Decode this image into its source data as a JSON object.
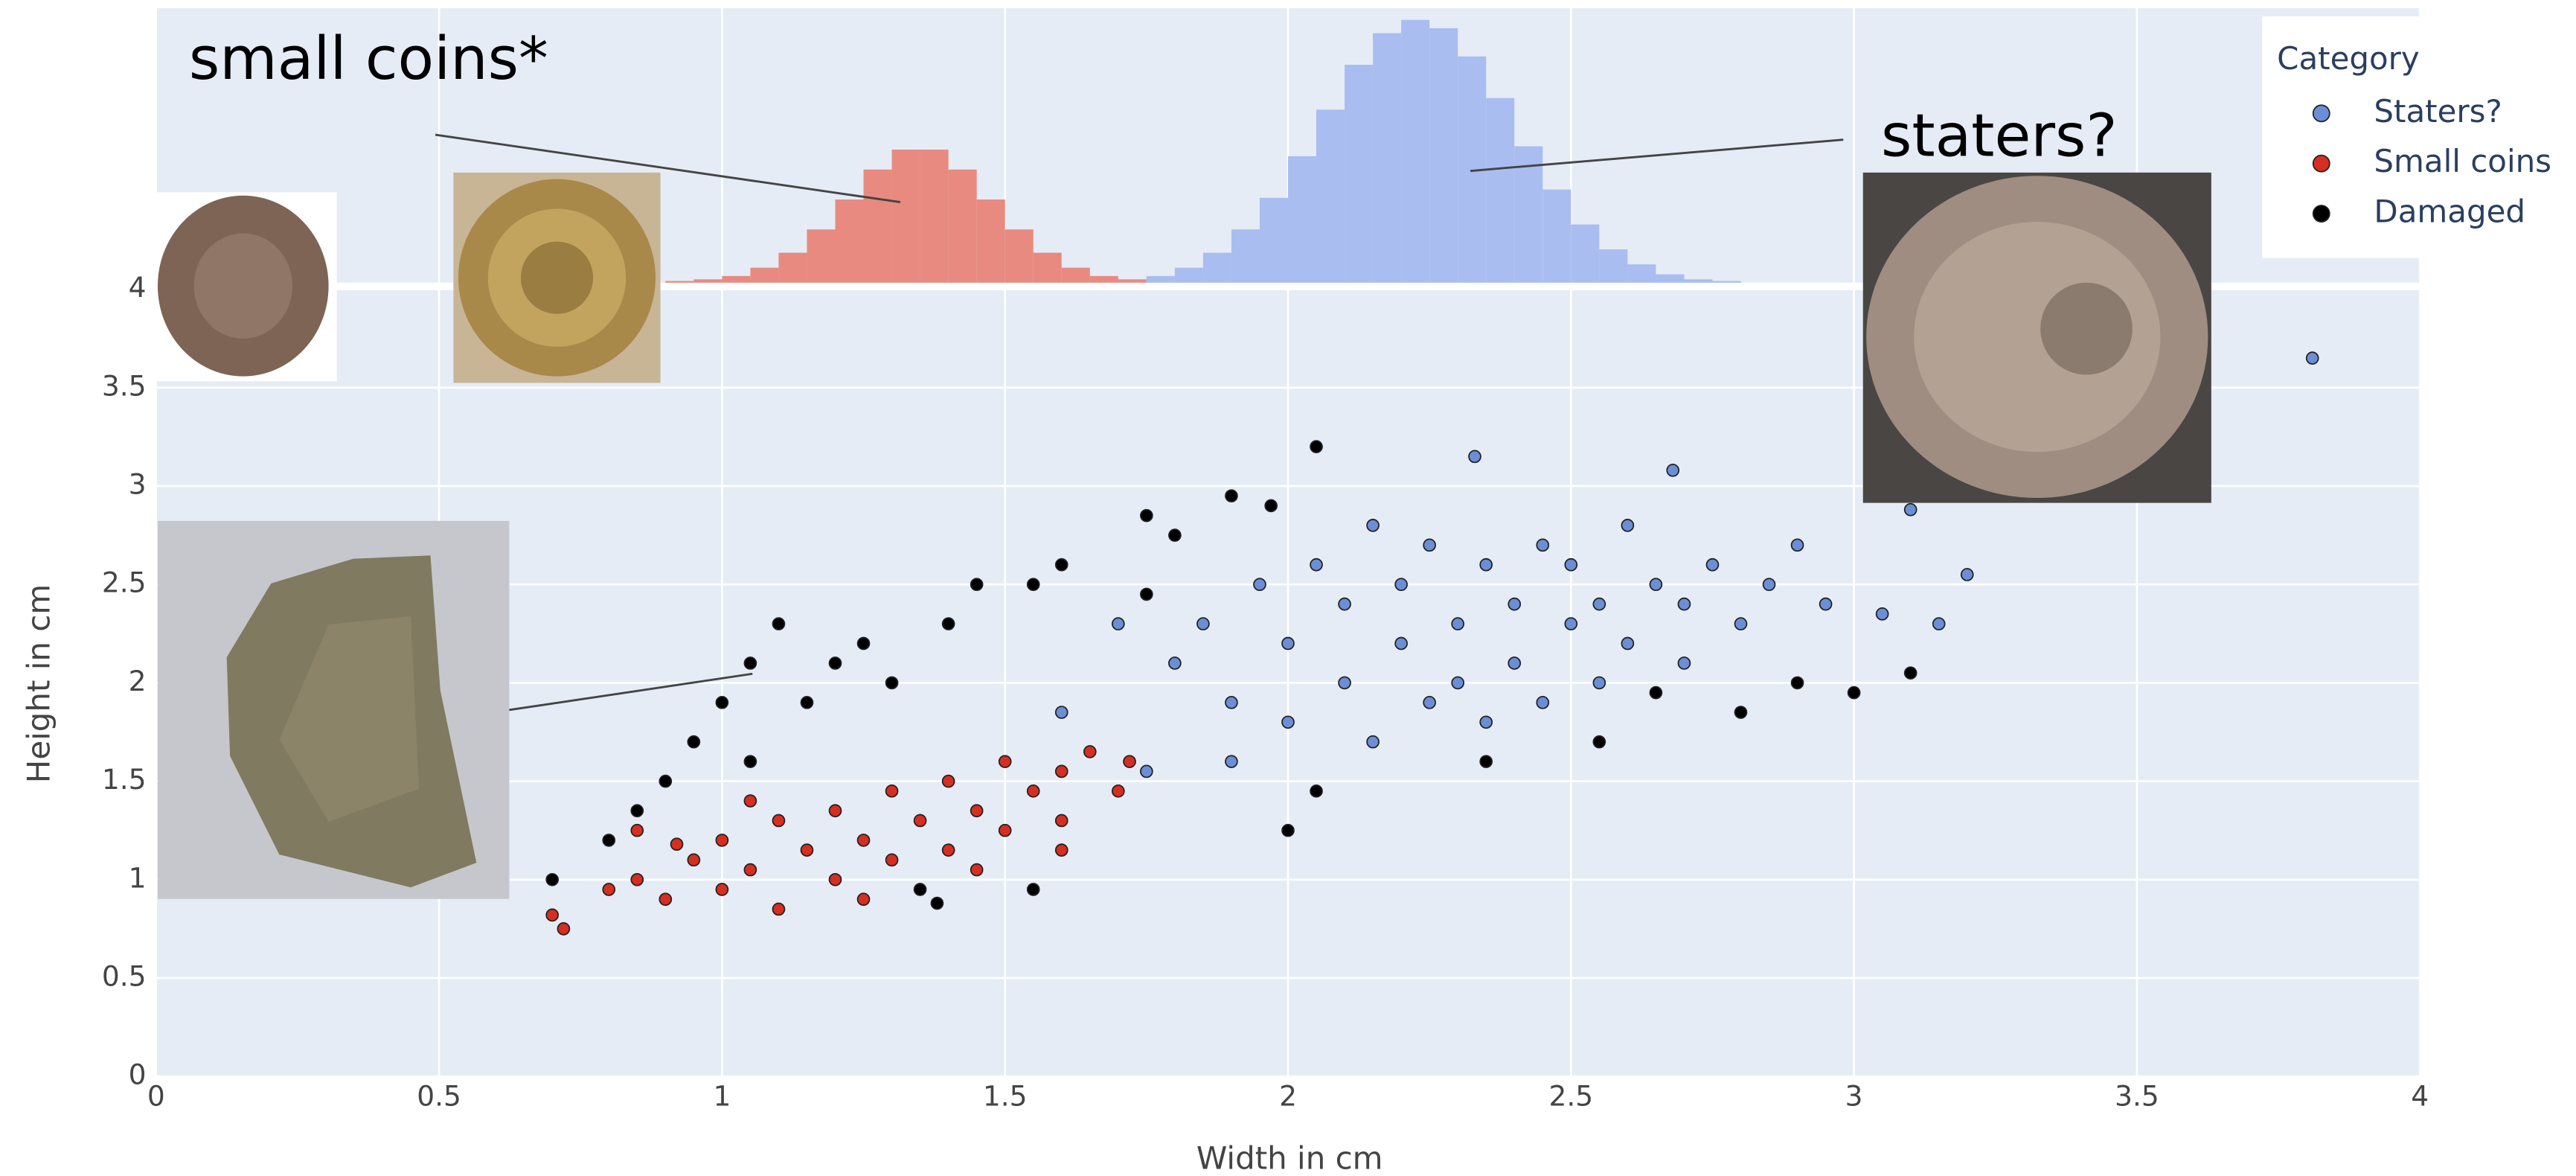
{
  "chart_data": {
    "type": "scatter",
    "x_label": "Width in cm",
    "y_label": "Height in cm",
    "xlim": [
      0,
      4
    ],
    "ylim": [
      0,
      4
    ],
    "xticks": [
      0,
      0.5,
      1,
      1.5,
      2,
      2.5,
      3,
      3.5,
      4
    ],
    "yticks": [
      0,
      0.5,
      1,
      1.5,
      2,
      2.5,
      3,
      3.5,
      4
    ],
    "grid": true,
    "legend_title": "Category",
    "legend_position": "top-right",
    "series": [
      {
        "name": "Staters?",
        "color": "#6b8fd6",
        "x": [
          1.8,
          1.85,
          1.9,
          1.95,
          2.0,
          2.0,
          2.05,
          2.1,
          2.1,
          2.15,
          2.15,
          2.2,
          2.2,
          2.25,
          2.25,
          2.3,
          2.3,
          2.35,
          2.35,
          2.4,
          2.4,
          2.45,
          2.45,
          2.5,
          2.5,
          2.55,
          2.55,
          2.6,
          2.6,
          2.65,
          2.7,
          2.7,
          2.75,
          2.8,
          2.85,
          2.9,
          2.95,
          3.05,
          3.15,
          3.2,
          2.33,
          2.68,
          1.75,
          1.9,
          1.6,
          3.81,
          3.1,
          1.7
        ],
        "y": [
          2.1,
          2.3,
          1.9,
          2.5,
          2.2,
          1.8,
          2.6,
          2.0,
          2.4,
          2.8,
          1.7,
          2.2,
          2.5,
          1.9,
          2.7,
          2.3,
          2.0,
          2.6,
          1.8,
          2.4,
          2.1,
          2.7,
          1.9,
          2.3,
          2.6,
          2.0,
          2.4,
          2.2,
          2.8,
          2.5,
          2.1,
          2.4,
          2.6,
          2.3,
          2.5,
          2.7,
          2.4,
          2.35,
          2.3,
          2.55,
          3.15,
          3.08,
          1.55,
          1.6,
          1.85,
          3.65,
          2.88,
          2.3
        ]
      },
      {
        "name": "Small coins",
        "color": "#d62e20",
        "x": [
          0.7,
          0.72,
          0.8,
          0.85,
          0.9,
          0.95,
          1.0,
          1.0,
          1.05,
          1.1,
          1.1,
          1.15,
          1.2,
          1.2,
          1.25,
          1.3,
          1.3,
          1.35,
          1.4,
          1.4,
          1.45,
          1.5,
          1.5,
          1.55,
          1.6,
          1.6,
          1.65,
          1.7,
          1.72,
          0.85,
          1.05,
          1.25,
          1.45,
          1.6,
          0.92
        ],
        "y": [
          0.82,
          0.75,
          0.95,
          1.0,
          0.9,
          1.1,
          0.95,
          1.2,
          1.05,
          1.3,
          0.85,
          1.15,
          1.35,
          1.0,
          1.2,
          1.45,
          1.1,
          1.3,
          1.5,
          1.15,
          1.35,
          1.6,
          1.25,
          1.45,
          1.55,
          1.3,
          1.65,
          1.45,
          1.6,
          1.25,
          1.4,
          0.9,
          1.05,
          1.15,
          1.18
        ]
      },
      {
        "name": "Damaged",
        "color": "#000000",
        "x": [
          0.7,
          0.8,
          0.85,
          0.9,
          0.95,
          1.0,
          1.05,
          1.1,
          1.15,
          1.2,
          1.25,
          1.3,
          1.4,
          1.45,
          1.55,
          1.6,
          1.75,
          1.8,
          1.9,
          1.97,
          2.05,
          1.75,
          1.35,
          1.38,
          1.55,
          2.0,
          2.05,
          2.35,
          2.55,
          2.8,
          2.9,
          3.0,
          3.1,
          2.65,
          1.05
        ],
        "y": [
          1.0,
          1.2,
          1.35,
          1.5,
          1.7,
          1.9,
          2.1,
          2.3,
          1.9,
          2.1,
          2.2,
          2.0,
          2.3,
          2.5,
          2.5,
          2.6,
          2.45,
          2.75,
          2.95,
          2.9,
          3.2,
          2.85,
          0.95,
          0.88,
          0.95,
          1.25,
          1.45,
          1.6,
          1.7,
          1.85,
          2.0,
          1.95,
          2.05,
          1.95,
          1.6
        ]
      }
    ],
    "histogram": {
      "type": "histogram",
      "ylim": [
        0,
        165
      ],
      "series": [
        {
          "name": "Small coins",
          "color": "#e88a80",
          "bins": [
            0.85,
            0.9,
            0.95,
            1.0,
            1.05,
            1.1,
            1.15,
            1.2,
            1.25,
            1.3,
            1.35,
            1.4,
            1.45,
            1.5,
            1.55,
            1.6,
            1.65,
            1.7,
            1.75
          ],
          "counts": [
            0,
            1,
            2,
            4,
            9,
            18,
            32,
            50,
            68,
            80,
            80,
            68,
            50,
            32,
            18,
            9,
            4,
            2
          ]
        },
        {
          "name": "Staters?",
          "color": "#a9bdf0",
          "bins": [
            1.75,
            1.8,
            1.85,
            1.9,
            1.95,
            2.0,
            2.05,
            2.1,
            2.15,
            2.2,
            2.25,
            2.3,
            2.35,
            2.4,
            2.45,
            2.5,
            2.55,
            2.6,
            2.65,
            2.7,
            2.75,
            2.8
          ],
          "counts": [
            4,
            9,
            18,
            32,
            51,
            76,
            104,
            131,
            150,
            158,
            153,
            136,
            111,
            82,
            56,
            35,
            20,
            11,
            5,
            2,
            1
          ]
        }
      ]
    },
    "annotations": [
      {
        "text": "small coins*"
      },
      {
        "text": "staters?"
      }
    ]
  }
}
